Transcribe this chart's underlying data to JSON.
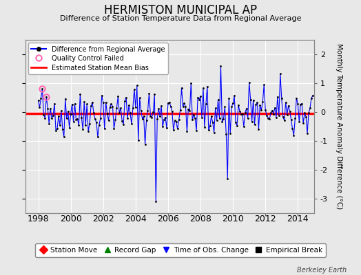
{
  "title": "HERMISTON MUNICIPAL AP",
  "subtitle": "Difference of Station Temperature Data from Regional Average",
  "ylabel": "Monthly Temperature Anomaly Difference (°C)",
  "xlabel_ticks": [
    1998,
    2000,
    2002,
    2004,
    2006,
    2008,
    2010,
    2012,
    2014
  ],
  "ylim": [
    -3.5,
    2.5
  ],
  "yticks": [
    -3,
    -2,
    -1,
    0,
    1,
    2
  ],
  "bias_value": -0.05,
  "background_color": "#e8e8e8",
  "plot_bg_color": "#e8e8e8",
  "line_color": "#0000ff",
  "bias_color": "#ff0000",
  "marker_color": "#000000",
  "qc_fail_color": "#ff69b4",
  "bottom_legend_items": [
    {
      "label": "Station Move",
      "color": "#ff0000",
      "marker": "D"
    },
    {
      "label": "Record Gap",
      "color": "#008000",
      "marker": "^"
    },
    {
      "label": "Time of Obs. Change",
      "color": "#0000ff",
      "marker": "v"
    },
    {
      "label": "Empirical Break",
      "color": "#000000",
      "marker": "s"
    }
  ],
  "watermark": "Berkeley Earth",
  "seed": 42,
  "n_points": 204,
  "xlim": [
    1997.2,
    2015.0
  ],
  "xstart": 1998.0,
  "xend": 2014.8
}
